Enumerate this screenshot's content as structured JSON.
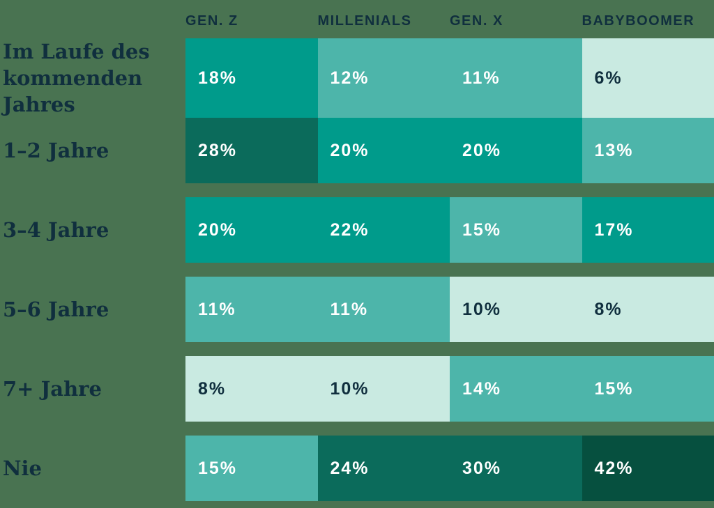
{
  "page": {
    "background": "#497351",
    "label_color": "#102F3E"
  },
  "chart_data": {
    "type": "heatmap",
    "columns": [
      "GEN. Z",
      "MILLENIALS",
      "GEN. X",
      "BABYBOOMER"
    ],
    "rows": [
      {
        "label": "Im Laufe des kommenden Jahres",
        "values": [
          18,
          12,
          11,
          6
        ],
        "display": [
          "18%",
          "12%",
          "11%",
          "6%"
        ]
      },
      {
        "label": "1–2 Jahre",
        "values": [
          28,
          20,
          20,
          13
        ],
        "display": [
          "28%",
          "20%",
          "20%",
          "13%"
        ]
      },
      {
        "label": "3–4 Jahre",
        "values": [
          20,
          22,
          15,
          17
        ],
        "display": [
          "20%",
          "22%",
          "15%",
          "17%"
        ]
      },
      {
        "label": "5–6 Jahre",
        "values": [
          11,
          11,
          10,
          8
        ],
        "display": [
          "11%",
          "11%",
          "10%",
          "8%"
        ]
      },
      {
        "label": "7+ Jahre",
        "values": [
          8,
          10,
          14,
          15
        ],
        "display": [
          "8%",
          "10%",
          "14%",
          "15%"
        ]
      },
      {
        "label": "Nie",
        "values": [
          15,
          24,
          30,
          42
        ],
        "display": [
          "15%",
          "24%",
          "30%",
          "42%"
        ]
      }
    ],
    "unit": "%",
    "legend_position": "none",
    "grid": false,
    "color_scale": [
      {
        "max": 10,
        "bg": "#C9EAE1",
        "fg": "#102F3E"
      },
      {
        "max": 16,
        "bg": "#4DB5AA",
        "fg": "#FFFFFF"
      },
      {
        "max": 22,
        "bg": "#009B8B",
        "fg": "#FFFFFF"
      },
      {
        "max": 33,
        "bg": "#0B6B5B",
        "fg": "#FFFFFF"
      },
      {
        "max": 100,
        "bg": "#06503F",
        "fg": "#FFFFFF"
      }
    ]
  }
}
